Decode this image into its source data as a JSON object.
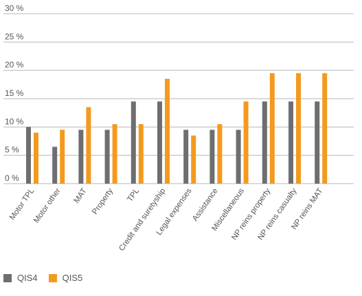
{
  "chart_data": {
    "type": "bar",
    "categories": [
      "Motor TPL",
      "Motor other",
      "MAT",
      "Property",
      "TPL",
      "Credit and suretyship",
      "Legal expenses",
      "Assistance",
      "Miscellaneous",
      "NP reins property",
      "NP reins casualty",
      "NP reins MAT"
    ],
    "series": [
      {
        "name": "QIS4",
        "color": "#6d6e70",
        "values": [
          10,
          6.5,
          9.5,
          9.5,
          14.5,
          14.5,
          9.5,
          9.5,
          9.5,
          14.5,
          14.5,
          14.5
        ]
      },
      {
        "name": "QIS5",
        "color": "#f39a1e",
        "values": [
          9,
          9.5,
          13.5,
          10.5,
          10.5,
          18.5,
          8.5,
          10.5,
          14.5,
          19.5,
          19.5,
          19.5
        ]
      }
    ],
    "yticks": [
      "0 %",
      "5 %",
      "10 %",
      "15 %",
      "20 %",
      "25 %",
      "30 %"
    ],
    "ylim": [
      0,
      30
    ],
    "grid": true,
    "legend": "bottom-left"
  }
}
